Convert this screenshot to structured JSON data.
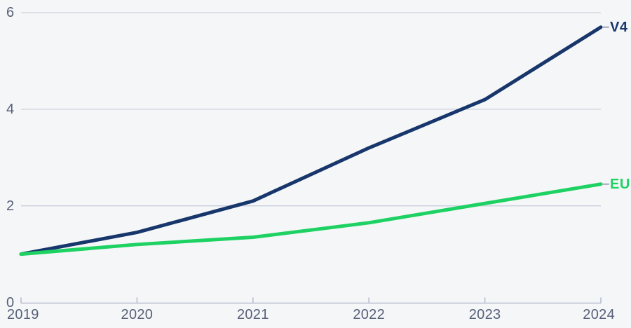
{
  "chart_data": {
    "type": "line",
    "x": [
      2019,
      2020,
      2021,
      2022,
      2023,
      2024
    ],
    "xtick_labels": [
      "2019",
      "2020",
      "2021",
      "2022",
      "2023",
      "2024"
    ],
    "yticks": [
      0,
      2,
      4,
      6
    ],
    "ytick_labels": [
      "0",
      "2",
      "4",
      "6"
    ],
    "ylim": [
      0,
      6
    ],
    "series": [
      {
        "name": "V4",
        "color": "#17366b",
        "values": [
          1.0,
          1.45,
          2.1,
          3.2,
          4.2,
          5.7
        ]
      },
      {
        "name": "EU",
        "color": "#1dd263",
        "values": [
          1.0,
          1.2,
          1.35,
          1.65,
          2.05,
          2.45
        ]
      }
    ],
    "title": "",
    "xlabel": "",
    "ylabel": "",
    "grid": "horizontal",
    "legend_position": "line-end-labels",
    "colors": {
      "background": "#f5f6f8",
      "gridline": "#c9cfdd",
      "axis": "#b6bed0",
      "tick_label": "#566178",
      "leader_dash": "#9fa6b6"
    }
  }
}
